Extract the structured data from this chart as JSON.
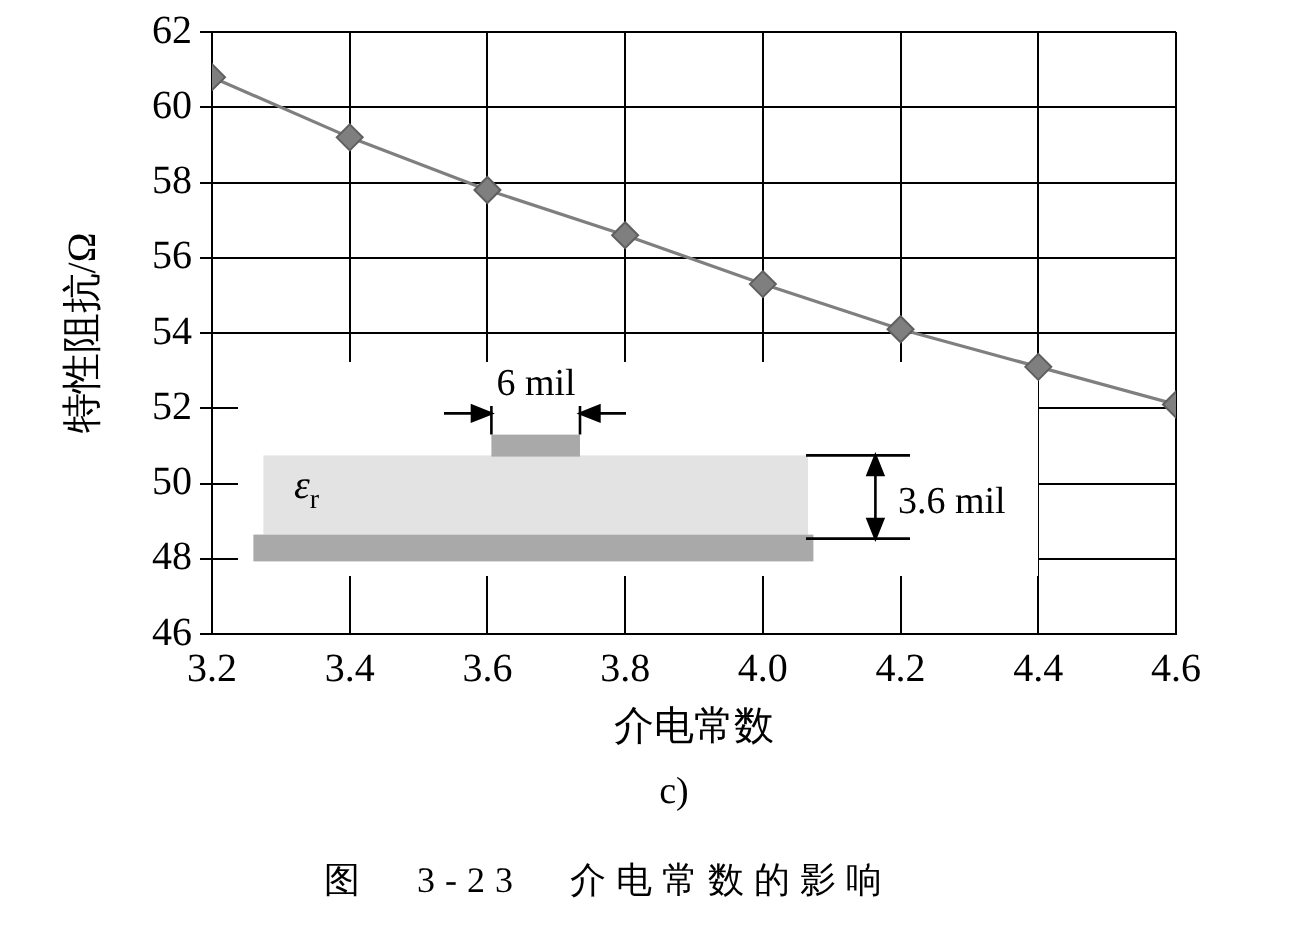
{
  "chart_data": {
    "type": "line",
    "xlabel": "介电常数",
    "ylabel": "特性阻抗/Ω",
    "x": [
      3.2,
      3.4,
      3.6,
      3.8,
      4.0,
      4.2,
      4.4,
      4.6
    ],
    "series": [
      {
        "color": "#7f7f7f",
        "values": [
          60.8,
          59.2,
          57.8,
          56.6,
          55.3,
          54.1,
          53.1,
          52.1
        ]
      }
    ],
    "xlim": [
      3.2,
      4.6
    ],
    "xticks": [
      3.2,
      3.4,
      3.6,
      3.8,
      {
        "value": 4,
        "label": "4.0"
      },
      4.2,
      4.4,
      4.6
    ],
    "ylim": [
      46,
      62
    ],
    "yticks": [
      46,
      48,
      50,
      52,
      54,
      56,
      58,
      60,
      62
    ],
    "grid": true,
    "marker": "diamond",
    "line_style": "solid",
    "annotations": [
      "ε$_{r}$",
      "6 mil",
      "3.6 mil",
      "c)",
      "图 3-23 介电常数的影响"
    ]
  }
}
